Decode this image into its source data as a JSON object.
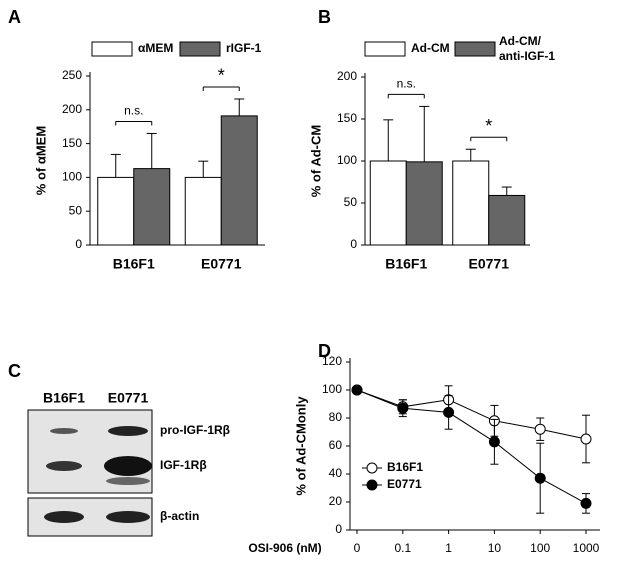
{
  "chart_data": [
    {
      "type": "bar",
      "panel_label": "A",
      "ylabel": "% of αMEM",
      "categories": [
        "B16F1",
        "E0771"
      ],
      "series": [
        {
          "name": "αMEM",
          "color": "#ffffff",
          "values": [
            100,
            100
          ],
          "errors": [
            34,
            24
          ]
        },
        {
          "name": "rIGF-1",
          "color": "#666666",
          "values": [
            113,
            191
          ],
          "errors": [
            52,
            25
          ]
        }
      ],
      "annotations": [
        "n.s.",
        "*"
      ],
      "ylim": [
        0,
        250
      ],
      "yticks": [
        0,
        50,
        100,
        150,
        200,
        250
      ]
    },
    {
      "type": "bar",
      "panel_label": "B",
      "ylabel": "% of Ad-CM",
      "categories": [
        "B16F1",
        "E0771"
      ],
      "series": [
        {
          "name": "Ad-CM",
          "color": "#ffffff",
          "values": [
            100,
            100
          ],
          "errors": [
            49,
            14
          ]
        },
        {
          "name": "Ad-CM/ anti-IGF-1",
          "color": "#666666",
          "values": [
            99,
            59
          ],
          "errors": [
            66,
            10
          ]
        }
      ],
      "annotations": [
        "n.s.",
        "*"
      ],
      "ylim": [
        0,
        200
      ],
      "yticks": [
        0,
        50,
        100,
        150,
        200
      ]
    },
    {
      "type": "line",
      "panel_label": "D",
      "ylabel": "% of Ad-CMonly",
      "xlabel": "OSI-906 (nM)",
      "categories": [
        "0",
        "0.1",
        "1",
        "10",
        "100",
        "1000"
      ],
      "series": [
        {
          "name": "B16F1",
          "color": "#ffffff",
          "values": [
            100,
            88,
            93,
            78,
            72,
            65
          ],
          "errors": [
            1,
            5,
            10,
            11,
            8,
            17
          ]
        },
        {
          "name": "E0771",
          "color": "#000000",
          "values": [
            100,
            87,
            84,
            63,
            37,
            19
          ],
          "errors": [
            1,
            6,
            12,
            16,
            25,
            7
          ]
        }
      ],
      "legend": "lower left",
      "ylim": [
        0,
        120
      ],
      "yticks": [
        0,
        20,
        40,
        60,
        80,
        100,
        120
      ]
    }
  ],
  "blot": {
    "panel_label": "C",
    "lanes": [
      "B16F1",
      "E0771"
    ],
    "bands": [
      "pro-IGF-1Rβ",
      "IGF-1Rβ",
      "β-actin"
    ]
  }
}
